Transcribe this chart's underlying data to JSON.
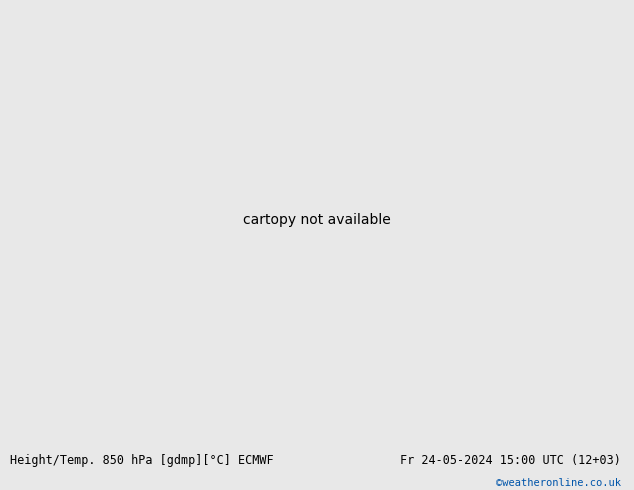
{
  "title_left": "Height/Temp. 850 hPa [gdmp][°C] ECMWF",
  "title_right": "Fr 24-05-2024 15:00 UTC (12+03)",
  "credit": "©weatheronline.co.uk",
  "credit_color": "#0055aa",
  "bg_color": "#d8d8d8",
  "land_green": "#c8f0a0",
  "land_light": "#e8f8e0",
  "sea_color": "#e8e8e8",
  "coast_color": "#888888",
  "caption_bg": "#e8e8e8",
  "caption_color": "#000000",
  "caption_fontsize": 8.5,
  "fig_width": 6.34,
  "fig_height": 4.9,
  "dpi": 100,
  "orange": "#dd7700",
  "red": "#cc0000",
  "black": "#000000",
  "magenta": "#dd00dd",
  "lon_min": -119,
  "lon_max": -55,
  "lat_min": 2,
  "lat_max": 38
}
